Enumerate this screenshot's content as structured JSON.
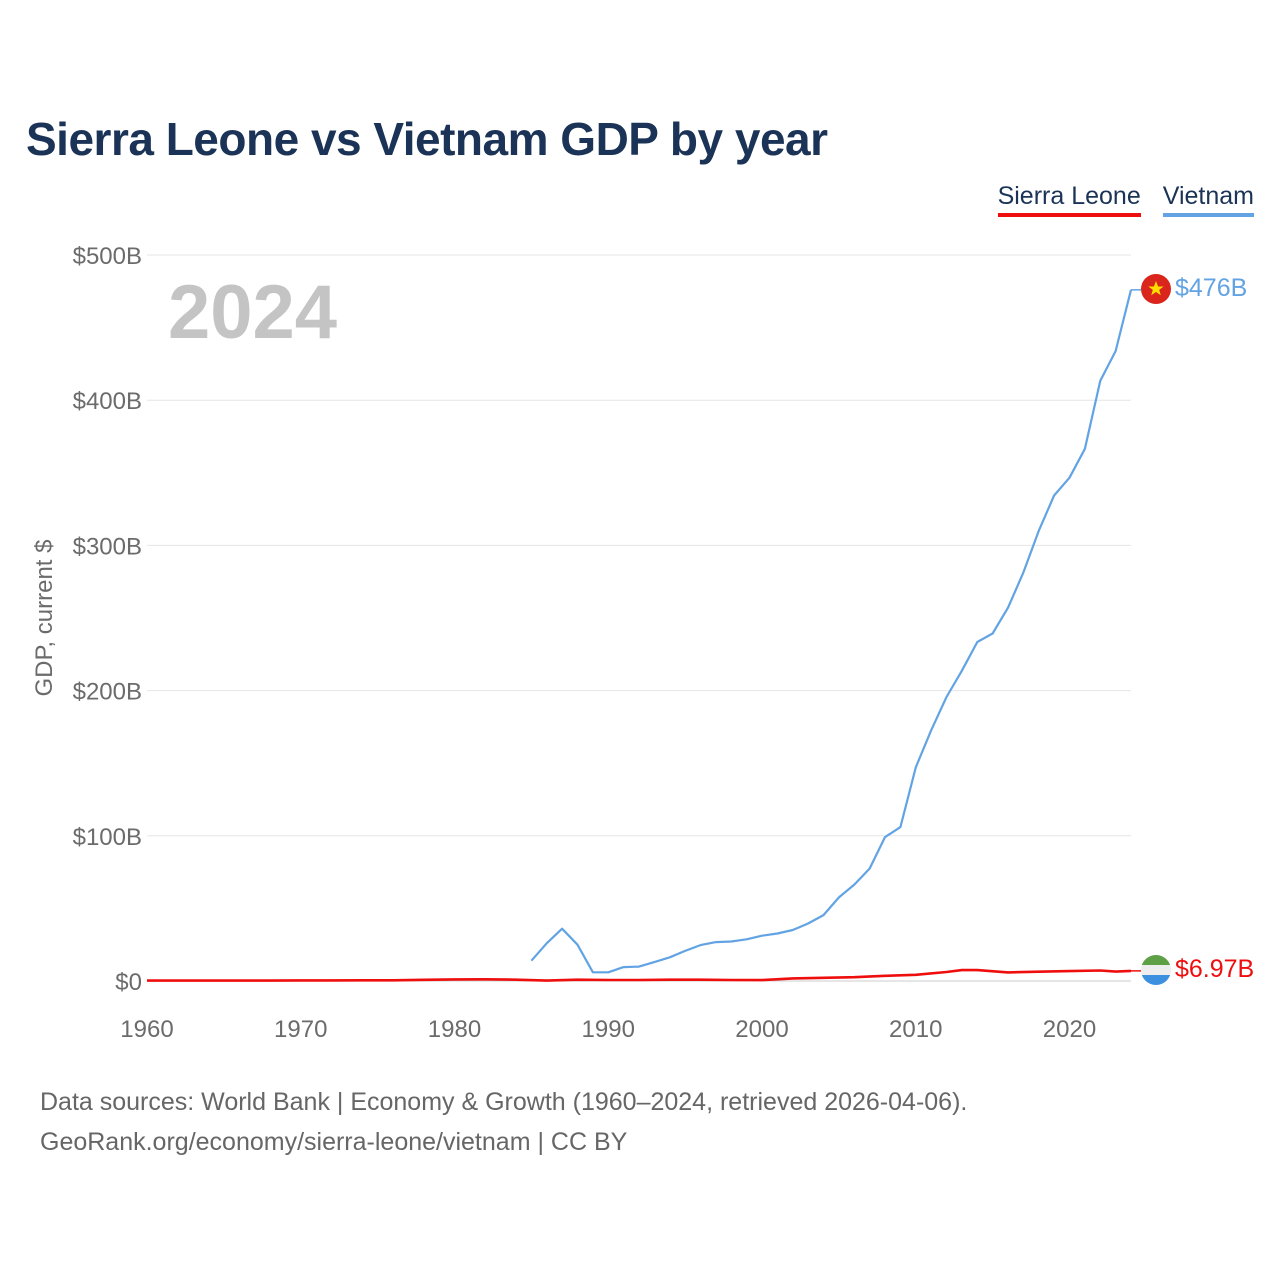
{
  "title": "Sierra Leone vs Vietnam GDP by year",
  "legend": [
    {
      "name": "Sierra Leone",
      "color": "#ef0e0e"
    },
    {
      "name": "Vietnam",
      "color": "#62a3e3"
    }
  ],
  "year_label": "2024",
  "footer": {
    "line1": "Data sources: World Bank | Economy & Growth (1960–2024, retrieved 2026-04-06).",
    "line2": "GeoRank.org/economy/sierra-leone/vietnam | CC BY"
  },
  "chart_data": {
    "type": "line",
    "title": "Sierra Leone vs Vietnam GDP by year",
    "xlabel": "",
    "ylabel": "GDP, current $",
    "xlim": [
      1960,
      2024
    ],
    "ylim": [
      0,
      500
    ],
    "x_ticks": [
      1960,
      1970,
      1980,
      1990,
      2000,
      2010,
      2020
    ],
    "x_tick_labels": [
      "1960",
      "1970",
      "1980",
      "1990",
      "2000",
      "2010",
      "2020"
    ],
    "y_ticks": [
      0,
      100,
      200,
      300,
      400,
      500
    ],
    "y_tick_labels": [
      "$0",
      "$100B",
      "$200B",
      "$300B",
      "$400B",
      "$500B"
    ],
    "grid": true,
    "series": [
      {
        "name": "Vietnam",
        "color": "#62a3e3",
        "end_label": "$476B",
        "x": [
          1985,
          1986,
          1987,
          1988,
          1989,
          1990,
          1991,
          1992,
          1993,
          1994,
          1995,
          1996,
          1997,
          1998,
          1999,
          2000,
          2001,
          2002,
          2003,
          2004,
          2005,
          2006,
          2007,
          2008,
          2009,
          2010,
          2011,
          2012,
          2013,
          2014,
          2015,
          2016,
          2017,
          2018,
          2019,
          2020,
          2021,
          2022,
          2023,
          2024
        ],
        "values": [
          14,
          26,
          36,
          25,
          6,
          6,
          9.6,
          9.9,
          13,
          16.3,
          20.7,
          24.7,
          26.8,
          27.2,
          28.7,
          31.2,
          32.7,
          35.1,
          39.6,
          45.4,
          57.6,
          66.4,
          77.4,
          99.1,
          106,
          147.2,
          172.6,
          195.6,
          213.7,
          233.5,
          239.3,
          257.1,
          281.4,
          310.1,
          334.4,
          346.6,
          366.5,
          413.4,
          433.8,
          476
        ]
      },
      {
        "name": "Sierra Leone",
        "color": "#ef0e0e",
        "end_label": "$6.97B",
        "x": [
          1960,
          1962,
          1964,
          1966,
          1968,
          1970,
          1972,
          1974,
          1976,
          1978,
          1980,
          1982,
          1984,
          1986,
          1988,
          1990,
          1992,
          1994,
          1996,
          1998,
          2000,
          2002,
          2004,
          2006,
          2008,
          2010,
          2012,
          2013,
          2014,
          2016,
          2018,
          2020,
          2022,
          2023,
          2024
        ],
        "values": [
          0.3,
          0.3,
          0.3,
          0.3,
          0.3,
          0.4,
          0.4,
          0.5,
          0.5,
          0.8,
          1.1,
          1.2,
          0.9,
          0.3,
          0.9,
          0.7,
          0.7,
          0.9,
          0.9,
          0.7,
          0.6,
          1.8,
          2.2,
          2.6,
          3.6,
          4.3,
          6.2,
          7.5,
          7.5,
          5.9,
          6.4,
          6.8,
          7.2,
          6.5,
          6.97
        ]
      }
    ]
  }
}
